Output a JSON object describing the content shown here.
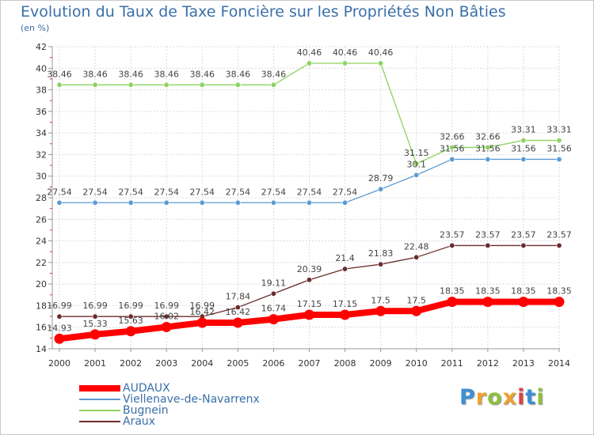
{
  "title": "Evolution du Taux de Taxe Foncière sur les Propriétés Non Bâties",
  "subtitle": "(en %)",
  "brand": {
    "letters": [
      "P",
      "r",
      "o",
      "x",
      "i",
      "t",
      "i"
    ],
    "colors": [
      "#3d8fd6",
      "#f0a030",
      "#8ec040",
      "#f0a030",
      "#e04040",
      "#3d8fd6",
      "#8ec040"
    ]
  },
  "chart_data": {
    "type": "line",
    "title": "Evolution du Taux de Taxe Foncière sur les Propriétés Non Bâties",
    "ylabel": "(en %)",
    "x": [
      "2000",
      "2001",
      "2002",
      "2003",
      "2004",
      "2005",
      "2006",
      "2007",
      "2008",
      "2009",
      "2010",
      "2011",
      "2012",
      "2013",
      "2014"
    ],
    "ylim": [
      14,
      42
    ],
    "yticks": [
      "14",
      "16",
      "18",
      "20",
      "22",
      "24",
      "26",
      "28",
      "30",
      "32",
      "34",
      "36",
      "38",
      "40",
      "42"
    ],
    "grid": true,
    "legend_position": "bottom-left",
    "series": [
      {
        "name": "AUDAUX",
        "color": "#ff0000",
        "values": [
          14.93,
          15.33,
          15.63,
          16.02,
          16.42,
          16.42,
          16.74,
          17.15,
          17.15,
          17.5,
          17.5,
          18.35,
          18.35,
          18.35,
          18.35
        ],
        "labels": [
          "14.93",
          "15.33",
          "15.63",
          "16.02",
          "16.42",
          "16.42",
          "16.74",
          "17.15",
          "17.15",
          "17.5",
          "17.5",
          "18.35",
          "18.35",
          "18.35",
          "18.35"
        ]
      },
      {
        "name": "Viellenave-de-Navarrenx",
        "color": "#5b9bd5",
        "values": [
          27.54,
          27.54,
          27.54,
          27.54,
          27.54,
          27.54,
          27.54,
          27.54,
          27.54,
          28.79,
          30.1,
          31.56,
          31.56,
          31.56,
          31.56
        ],
        "labels": [
          "27.54",
          "27.54",
          "27.54",
          "27.54",
          "27.54",
          "27.54",
          "27.54",
          "27.54",
          "27.54",
          "28.79",
          "30.1",
          "31.56",
          "31.56",
          "31.56",
          "31.56"
        ]
      },
      {
        "name": "Bugnein",
        "color": "#8dd35f",
        "values": [
          38.46,
          38.46,
          38.46,
          38.46,
          38.46,
          38.46,
          38.46,
          40.46,
          40.46,
          40.46,
          31.15,
          32.66,
          32.66,
          33.31,
          33.31
        ],
        "labels": [
          "38.46",
          "38.46",
          "38.46",
          "38.46",
          "38.46",
          "38.46",
          "38.46",
          "40.46",
          "40.46",
          "40.46",
          "31.15",
          "32.66",
          "32.66",
          "33.31",
          "33.31"
        ]
      },
      {
        "name": "Araux",
        "color": "#6b2c2c",
        "values": [
          16.99,
          16.99,
          16.99,
          16.99,
          16.99,
          17.84,
          19.11,
          20.39,
          21.4,
          21.83,
          22.48,
          23.57,
          23.57,
          23.57,
          23.57
        ],
        "labels": [
          "16.99",
          "16.99",
          "16.99",
          "16.99",
          "16.99",
          "17.84",
          "19.11",
          "20.39",
          "21.4",
          "21.83",
          "22.48",
          "23.57",
          "23.57",
          "23.57",
          "23.57"
        ]
      }
    ]
  }
}
